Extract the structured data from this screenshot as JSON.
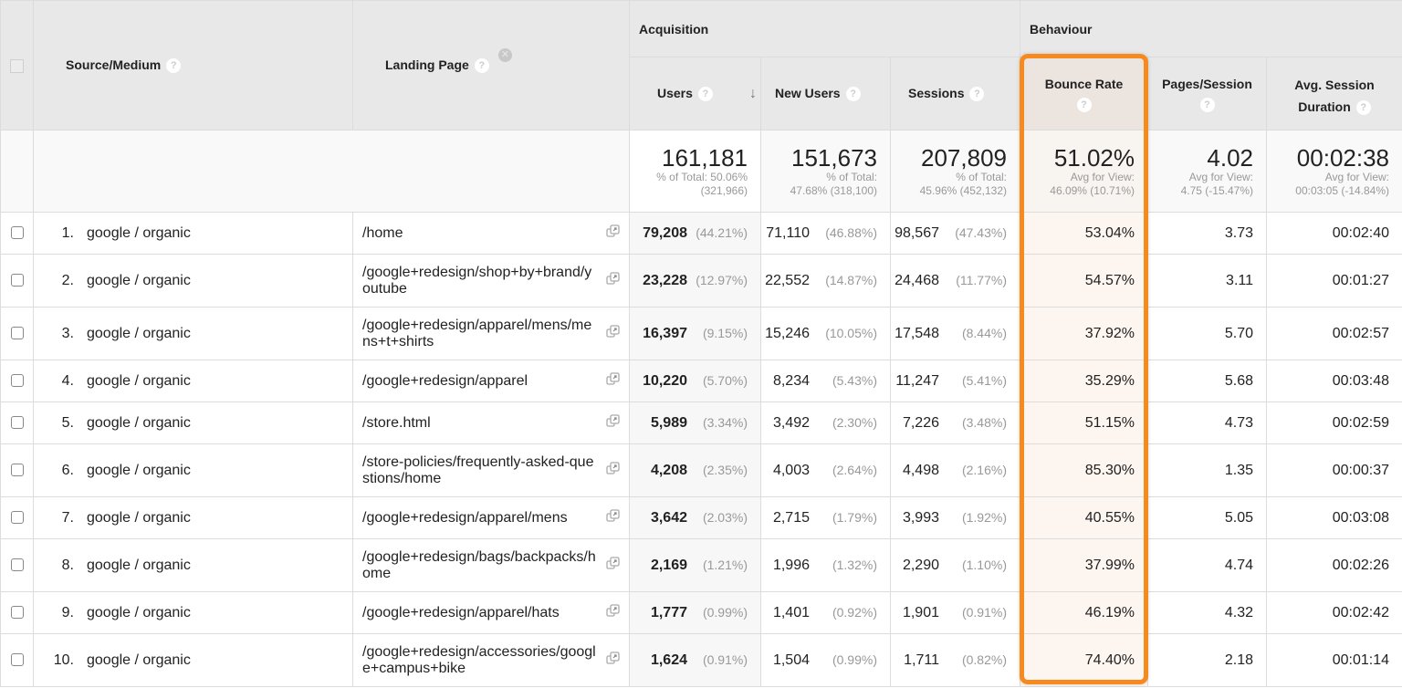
{
  "header": {
    "source_medium": "Source/Medium",
    "landing_page": "Landing Page",
    "help_glyph": "?",
    "remove_glyph": "✕",
    "group_acquisition": "Acquisition",
    "group_behaviour": "Behaviour",
    "columns": {
      "users": "Users",
      "new_users": "New Users",
      "sessions": "Sessions",
      "bounce_rate": "Bounce Rate",
      "pages_session": "Pages/Session",
      "avg_session_line1": "Avg. Session",
      "avg_session_line2": "Duration"
    },
    "sort_arrow": "↓"
  },
  "summary": {
    "users": {
      "value": "161,181",
      "line1": "% of Total: 50.06%",
      "line2": "(321,966)"
    },
    "new_users": {
      "value": "151,673",
      "line1": "% of Total:",
      "line2": "47.68% (318,100)"
    },
    "sessions": {
      "value": "207,809",
      "line1": "% of Total:",
      "line2": "45.96% (452,132)"
    },
    "bounce_rate": {
      "value": "51.02%",
      "line1": "Avg for View:",
      "line2": "46.09% (10.71%)"
    },
    "pages_session": {
      "value": "4.02",
      "line1": "Avg for View:",
      "line2": "4.75 (-15.47%)"
    },
    "avg_session": {
      "value": "00:02:38",
      "line1": "Avg for View:",
      "line2": "00:03:05 (-14.84%)"
    }
  },
  "rows": [
    {
      "idx": "1.",
      "source": "google / organic",
      "landing": "/home",
      "users": "79,208",
      "users_pct": "(44.21%)",
      "new_users": "71,110",
      "new_users_pct": "(46.88%)",
      "sessions": "98,567",
      "sessions_pct": "(47.43%)",
      "bounce_rate": "53.04%",
      "pages_session": "3.73",
      "avg_session": "00:02:40"
    },
    {
      "idx": "2.",
      "source": "google / organic",
      "landing": "/google+redesign/shop+by+brand/youtube",
      "users": "23,228",
      "users_pct": "(12.97%)",
      "new_users": "22,552",
      "new_users_pct": "(14.87%)",
      "sessions": "24,468",
      "sessions_pct": "(11.77%)",
      "bounce_rate": "54.57%",
      "pages_session": "3.11",
      "avg_session": "00:01:27"
    },
    {
      "idx": "3.",
      "source": "google / organic",
      "landing": "/google+redesign/apparel/mens/mens+t+shirts",
      "users": "16,397",
      "users_pct": "(9.15%)",
      "new_users": "15,246",
      "new_users_pct": "(10.05%)",
      "sessions": "17,548",
      "sessions_pct": "(8.44%)",
      "bounce_rate": "37.92%",
      "pages_session": "5.70",
      "avg_session": "00:02:57"
    },
    {
      "idx": "4.",
      "source": "google / organic",
      "landing": "/google+redesign/apparel",
      "users": "10,220",
      "users_pct": "(5.70%)",
      "new_users": "8,234",
      "new_users_pct": "(5.43%)",
      "sessions": "11,247",
      "sessions_pct": "(5.41%)",
      "bounce_rate": "35.29%",
      "pages_session": "5.68",
      "avg_session": "00:03:48"
    },
    {
      "idx": "5.",
      "source": "google / organic",
      "landing": "/store.html",
      "users": "5,989",
      "users_pct": "(3.34%)",
      "new_users": "3,492",
      "new_users_pct": "(2.30%)",
      "sessions": "7,226",
      "sessions_pct": "(3.48%)",
      "bounce_rate": "51.15%",
      "pages_session": "4.73",
      "avg_session": "00:02:59"
    },
    {
      "idx": "6.",
      "source": "google / organic",
      "landing": "/store-policies/frequently-asked-questions/home",
      "users": "4,208",
      "users_pct": "(2.35%)",
      "new_users": "4,003",
      "new_users_pct": "(2.64%)",
      "sessions": "4,498",
      "sessions_pct": "(2.16%)",
      "bounce_rate": "85.30%",
      "pages_session": "1.35",
      "avg_session": "00:00:37"
    },
    {
      "idx": "7.",
      "source": "google / organic",
      "landing": "/google+redesign/apparel/mens",
      "users": "3,642",
      "users_pct": "(2.03%)",
      "new_users": "2,715",
      "new_users_pct": "(1.79%)",
      "sessions": "3,993",
      "sessions_pct": "(1.92%)",
      "bounce_rate": "40.55%",
      "pages_session": "5.05",
      "avg_session": "00:03:08"
    },
    {
      "idx": "8.",
      "source": "google / organic",
      "landing": "/google+redesign/bags/backpacks/home",
      "users": "2,169",
      "users_pct": "(1.21%)",
      "new_users": "1,996",
      "new_users_pct": "(1.32%)",
      "sessions": "2,290",
      "sessions_pct": "(1.10%)",
      "bounce_rate": "37.99%",
      "pages_session": "4.74",
      "avg_session": "00:02:26"
    },
    {
      "idx": "9.",
      "source": "google / organic",
      "landing": "/google+redesign/apparel/hats",
      "users": "1,777",
      "users_pct": "(0.99%)",
      "new_users": "1,401",
      "new_users_pct": "(0.92%)",
      "sessions": "1,901",
      "sessions_pct": "(0.91%)",
      "bounce_rate": "46.19%",
      "pages_session": "4.32",
      "avg_session": "00:02:42"
    },
    {
      "idx": "10.",
      "source": "google / organic",
      "landing": "/google+redesign/accessories/google+campus+bike",
      "users": "1,624",
      "users_pct": "(0.91%)",
      "new_users": "1,504",
      "new_users_pct": "(0.99%)",
      "sessions": "1,711",
      "sessions_pct": "(0.82%)",
      "bounce_rate": "74.40%",
      "pages_session": "2.18",
      "avg_session": "00:01:14"
    }
  ],
  "colors": {
    "highlight": "#f68a1e",
    "header_bg": "#e8e8e8",
    "highlight_bg": "#fdf6f0"
  }
}
